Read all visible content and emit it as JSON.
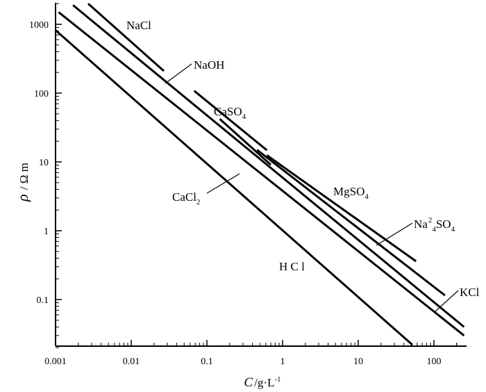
{
  "chart_data": {
    "type": "line",
    "xscale": "log",
    "yscale": "log",
    "xlim": [
      0.001,
      250
    ],
    "ylim": [
      0.02,
      2000
    ],
    "grid": false,
    "legend": "none",
    "ylabel": {
      "symbol": "ρ",
      "unit": "/ Ω m"
    },
    "xlabel": {
      "symbol": "C",
      "unit": "/g·L",
      "exponent": "-1"
    },
    "x_ticks": [
      {
        "value": 0.001,
        "label": "0.001"
      },
      {
        "value": 0.01,
        "label": "0.01"
      },
      {
        "value": 0.1,
        "label": "0.1"
      },
      {
        "value": 1,
        "label": "1"
      },
      {
        "value": 10,
        "label": "10"
      },
      {
        "value": 100,
        "label": "100"
      }
    ],
    "y_ticks": [
      {
        "value": 1000,
        "label": "1000"
      },
      {
        "value": 100,
        "label": "100"
      },
      {
        "value": 10,
        "label": "10"
      },
      {
        "value": 1,
        "label": "1"
      },
      {
        "value": 0.1,
        "label": "0.1"
      }
    ],
    "series": [
      {
        "name": "NaCl",
        "label_parts": [
          {
            "t": "NaCl"
          }
        ],
        "x": [
          0.0027,
          0.027
        ],
        "y": [
          2000,
          210
        ]
      },
      {
        "name": "NaOH",
        "label_parts": [
          {
            "t": "NaOH"
          }
        ],
        "x": [
          0.068,
          0.62
        ],
        "y": [
          108,
          14.8
        ]
      },
      {
        "name": "CaSO₄",
        "label_parts": [
          {
            "t": "CaSO"
          },
          {
            "t": "4",
            "sub": true
          }
        ],
        "x": [
          0.148,
          0.7
        ],
        "y": [
          42,
          9.1
        ]
      },
      {
        "name": "MgSO₄",
        "label_parts": [
          {
            "t": "MgSO"
          },
          {
            "t": "4",
            "sub": true
          }
        ],
        "x": [
          0.62,
          58
        ],
        "y": [
          12.5,
          0.36
        ]
      },
      {
        "name": "Na₄²SO₄",
        "label_parts": [
          {
            "t": "Na"
          },
          {
            "t": "2",
            "sup": true
          },
          {
            "t": "4",
            "sub": true
          },
          {
            "t": "SO"
          },
          {
            "t": "4",
            "sub": true
          }
        ],
        "x": [
          0.46,
          140
        ],
        "y": [
          15,
          0.115
        ]
      },
      {
        "name": "KCl",
        "label_parts": [
          {
            "t": "KCl"
          }
        ],
        "x": [
          0.0017,
          250
        ],
        "y": [
          1900,
          0.04
        ]
      },
      {
        "name": "CaCl₂",
        "label_parts": [
          {
            "t": "CaCl"
          },
          {
            "t": "2",
            "sub": true
          }
        ],
        "x": [
          0.0011,
          250
        ],
        "y": [
          1500,
          0.03
        ]
      },
      {
        "name": "HCl",
        "label_parts": [
          {
            "t": "H C l"
          }
        ],
        "x": [
          0.001,
          52
        ],
        "y": [
          820,
          0.022
        ]
      }
    ]
  }
}
